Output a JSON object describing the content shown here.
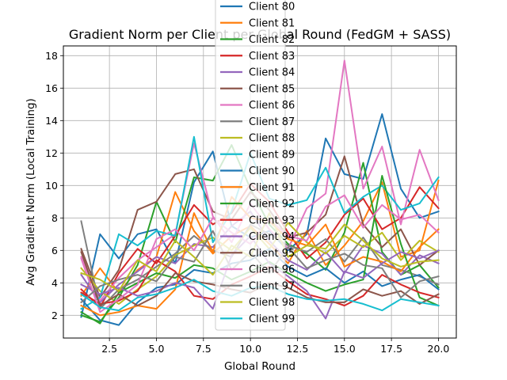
{
  "chart_data": {
    "type": "line",
    "title": "Gradient Norm per Client per Global Round (FedGM + SASS)",
    "xlabel": "Global Round",
    "ylabel": "Avg Gradient Norm (Local Training)",
    "xlim": [
      0.05,
      20.95
    ],
    "ylim": [
      0.6,
      18.6
    ],
    "x": [
      1,
      2,
      3,
      4,
      5,
      6,
      7,
      8,
      9,
      10,
      11,
      12,
      13,
      14,
      15,
      16,
      17,
      18,
      19,
      20
    ],
    "x_ticks": [
      2.5,
      5.0,
      7.5,
      10.0,
      12.5,
      15.0,
      17.5,
      20.0
    ],
    "x_tick_labels": [
      "2.5",
      "5.0",
      "7.5",
      "10.0",
      "12.5",
      "15.0",
      "17.5",
      "20.0"
    ],
    "y_ticks": [
      2,
      4,
      6,
      8,
      10,
      12,
      14,
      16,
      18
    ],
    "y_tick_labels": [
      "2",
      "4",
      "6",
      "8",
      "10",
      "12",
      "14",
      "16",
      "18"
    ],
    "grid": true,
    "legend_position": "top-center",
    "colors": [
      "#1f77b4",
      "#ff7f0e",
      "#2ca02c",
      "#d62728",
      "#9467bd",
      "#8c564b",
      "#e377c2",
      "#7f7f7f",
      "#bcbd22",
      "#17becf"
    ],
    "series": [
      {
        "name": "Client 80",
        "values": [
          1.9,
          7.0,
          5.5,
          7.0,
          7.3,
          5.2,
          10.2,
          12.1,
          7.5,
          6.8,
          7.2,
          6.0,
          7.0,
          12.9,
          10.7,
          10.4,
          14.4,
          9.8,
          8.0,
          8.4
        ]
      },
      {
        "name": "Client 81",
        "values": [
          3.2,
          4.9,
          3.4,
          4.8,
          5.6,
          9.6,
          7.2,
          5.8,
          6.9,
          7.5,
          6.4,
          5.2,
          7.2,
          5.1,
          6.3,
          7.8,
          10.2,
          5.6,
          6.0,
          10.3
        ]
      },
      {
        "name": "Client 82",
        "values": [
          2.0,
          1.6,
          3.1,
          5.1,
          9.0,
          6.5,
          10.5,
          10.3,
          12.5,
          9.8,
          7.6,
          6.4,
          5.8,
          4.8,
          7.1,
          11.4,
          5.9,
          4.5,
          5.1,
          3.7
        ]
      },
      {
        "name": "Client 83",
        "values": [
          3.6,
          2.5,
          4.6,
          6.1,
          5.2,
          6.9,
          8.8,
          7.6,
          8.3,
          10.1,
          9.0,
          7.1,
          5.5,
          6.5,
          8.2,
          9.2,
          7.3,
          8.0,
          9.9,
          8.6
        ]
      },
      {
        "name": "Client 84",
        "values": [
          4.5,
          2.8,
          3.9,
          4.7,
          5.6,
          5.2,
          6.4,
          6.2,
          7.5,
          8.4,
          6.6,
          5.4,
          4.8,
          5.9,
          4.6,
          6.3,
          5.8,
          4.5,
          5.7,
          5.2
        ]
      },
      {
        "name": "Client 85",
        "values": [
          6.1,
          3.1,
          4.8,
          8.5,
          9.0,
          10.7,
          11.0,
          8.4,
          7.9,
          9.6,
          8.5,
          6.8,
          7.1,
          8.2,
          11.8,
          7.6,
          6.2,
          7.3,
          5.1,
          6.0
        ]
      },
      {
        "name": "Client 86",
        "values": [
          5.6,
          2.9,
          4.3,
          5.4,
          6.2,
          7.0,
          12.6,
          8.1,
          6.5,
          8.9,
          7.3,
          6.1,
          8.6,
          9.5,
          17.7,
          9.8,
          12.4,
          7.6,
          12.2,
          9.1
        ]
      },
      {
        "name": "Client 87",
        "values": [
          7.8,
          2.4,
          3.6,
          4.2,
          5.0,
          5.8,
          6.9,
          6.0,
          5.6,
          7.6,
          7.0,
          6.3,
          5.9,
          6.7,
          5.3,
          6.8,
          5.1,
          4.8,
          4.4,
          3.9
        ]
      },
      {
        "name": "Client 88",
        "values": [
          4.9,
          3.5,
          2.7,
          3.6,
          4.4,
          5.7,
          6.3,
          6.8,
          6.0,
          7.4,
          6.1,
          7.7,
          6.5,
          5.8,
          6.9,
          6.2,
          7.1,
          5.4,
          6.6,
          5.9
        ]
      },
      {
        "name": "Client 89",
        "values": [
          2.4,
          3.1,
          7.0,
          6.3,
          7.2,
          6.9,
          13.0,
          6.5,
          8.4,
          12.0,
          9.2,
          8.8,
          9.1,
          11.1,
          8.3,
          9.3,
          10.0,
          8.5,
          8.9,
          10.5
        ]
      },
      {
        "name": "Client 90",
        "values": [
          3.0,
          1.7,
          1.4,
          2.8,
          3.7,
          3.9,
          4.8,
          4.6,
          5.2,
          5.4,
          6.1,
          5.0,
          4.4,
          4.9,
          4.0,
          4.7,
          3.8,
          4.2,
          4.5,
          3.6
        ]
      },
      {
        "name": "Client 91",
        "values": [
          2.6,
          2.0,
          2.2,
          2.6,
          2.4,
          3.6,
          8.3,
          5.9,
          9.3,
          8.0,
          7.8,
          6.7,
          6.3,
          7.6,
          5.0,
          5.6,
          5.3,
          4.7,
          6.2,
          7.3
        ]
      },
      {
        "name": "Client 92",
        "values": [
          2.2,
          1.5,
          3.4,
          4.0,
          4.6,
          4.3,
          5.1,
          4.9,
          4.2,
          4.7,
          5.3,
          4.6,
          4.0,
          3.5,
          3.9,
          4.2,
          10.6,
          6.4,
          3.1,
          2.6
        ]
      },
      {
        "name": "Client 93",
        "values": [
          3.4,
          2.7,
          2.9,
          3.5,
          5.4,
          4.7,
          3.2,
          3.0,
          3.9,
          4.4,
          5.0,
          4.1,
          3.3,
          3.0,
          2.6,
          3.2,
          4.5,
          3.9,
          3.4,
          3.1
        ]
      },
      {
        "name": "Client 94",
        "values": [
          3.9,
          3.3,
          3.7,
          3.2,
          3.5,
          4.0,
          3.7,
          2.4,
          5.7,
          6.9,
          5.2,
          4.4,
          3.5,
          1.8,
          4.7,
          4.3,
          5.2,
          5.9,
          5.5,
          6.0
        ]
      },
      {
        "name": "Client 95",
        "values": [
          5.9,
          2.6,
          3.3,
          2.6,
          3.2,
          4.6,
          4.1,
          3.9,
          3.6,
          3.4,
          4.0,
          3.7,
          3.1,
          2.8,
          2.8,
          3.6,
          3.2,
          3.5,
          2.7,
          3.3
        ]
      },
      {
        "name": "Client 96",
        "values": [
          5.5,
          2.2,
          3.0,
          3.9,
          6.7,
          7.3,
          6.0,
          8.0,
          7.1,
          6.4,
          7.9,
          6.9,
          6.6,
          8.7,
          9.4,
          7.4,
          8.8,
          7.9,
          8.2,
          7.1
        ]
      },
      {
        "name": "Client 97",
        "values": [
          2.8,
          3.8,
          4.2,
          4.5,
          4.1,
          5.6,
          5.3,
          7.2,
          4.8,
          5.9,
          4.6,
          6.2,
          4.9,
          5.4,
          5.8,
          5.1,
          4.9,
          3.1,
          4.1,
          4.4
        ]
      },
      {
        "name": "Client 98",
        "values": [
          4.6,
          4.2,
          3.5,
          5.4,
          4.7,
          6.6,
          5.6,
          4.5,
          6.3,
          5.6,
          8.3,
          5.6,
          6.3,
          6.1,
          7.6,
          6.6,
          5.5,
          5.0,
          5.3,
          5.4
        ]
      },
      {
        "name": "Client 99",
        "values": [
          3.3,
          2.5,
          2.3,
          3.1,
          3.3,
          3.7,
          4.2,
          3.5,
          3.2,
          3.7,
          3.8,
          3.3,
          3.0,
          2.9,
          3.0,
          2.7,
          2.3,
          3.0,
          2.8,
          2.6
        ]
      }
    ]
  }
}
